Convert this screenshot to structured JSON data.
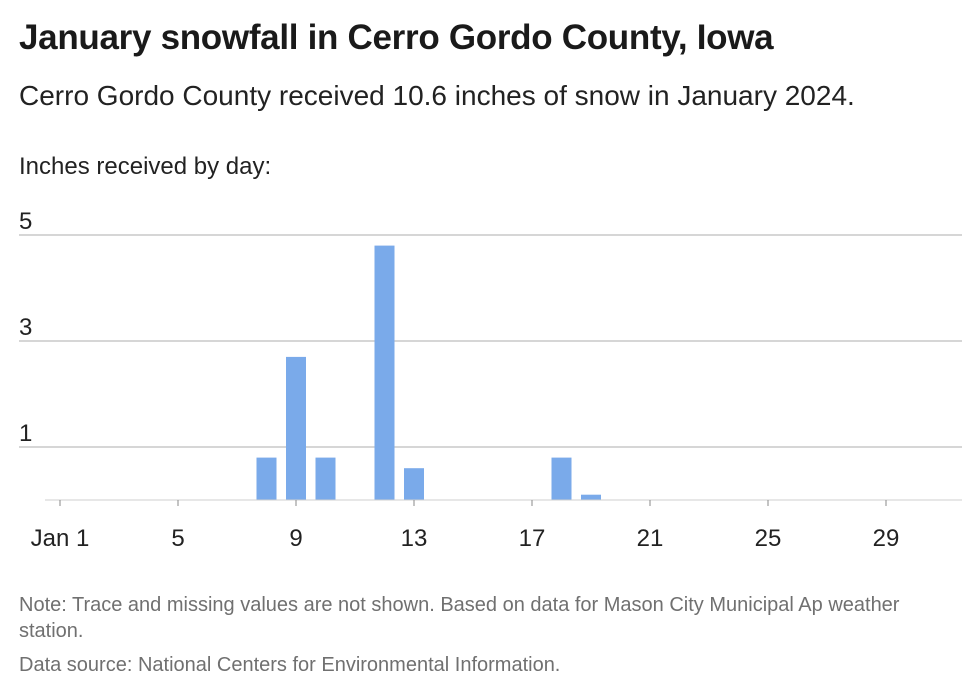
{
  "title": "January snowfall in Cerro Gordo County, Iowa",
  "subtitle": "Cerro Gordo County received 10.6 inches of snow in January 2024.",
  "notes": {
    "note": "Note: Trace and missing values are not shown. Based on data for Mason City Municipal Ap weather station.",
    "source": "Data source: National Centers for Environmental Information."
  },
  "chart_data": {
    "type": "bar",
    "title": "January snowfall in Cerro Gordo County, Iowa",
    "ylabel": "Inches received by day:",
    "xlabel": "",
    "x_ticks": [
      {
        "day": 1,
        "label": "Jan 1"
      },
      {
        "day": 5,
        "label": "5"
      },
      {
        "day": 9,
        "label": "9"
      },
      {
        "day": 13,
        "label": "13"
      },
      {
        "day": 17,
        "label": "17"
      },
      {
        "day": 21,
        "label": "21"
      },
      {
        "day": 25,
        "label": "25"
      },
      {
        "day": 29,
        "label": "29"
      }
    ],
    "y_ticks": [
      1,
      3,
      5
    ],
    "ylim": [
      0,
      5
    ],
    "xlim": [
      1,
      31
    ],
    "bars": [
      {
        "day": 8,
        "value": 0.8
      },
      {
        "day": 9,
        "value": 2.7
      },
      {
        "day": 10,
        "value": 0.8
      },
      {
        "day": 12,
        "value": 4.8
      },
      {
        "day": 13,
        "value": 0.6
      },
      {
        "day": 18,
        "value": 0.8
      },
      {
        "day": 19,
        "value": 0.1
      }
    ],
    "bar_color": "#7aaaea",
    "grid": true
  }
}
